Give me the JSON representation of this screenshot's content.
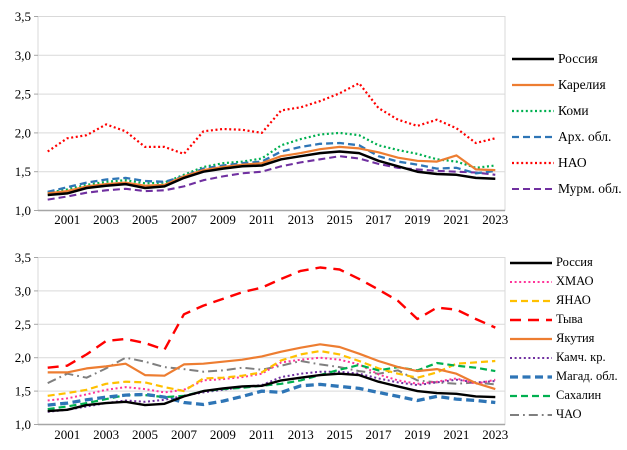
{
  "figure_background": "#FFFFFF",
  "axis_colors": {
    "gridline": "#D9D9D9",
    "axis_line": "#A6A6A6",
    "tick_text": "#000000"
  },
  "chart_data": [
    {
      "type": "line",
      "title": "",
      "xlabel": "",
      "ylabel": "",
      "ylim": [
        1.0,
        3.5
      ],
      "y_tick_step": 0.5,
      "grid": true,
      "legend_position": "right",
      "y_tick_labels": [
        "1,0",
        "1,5",
        "2,0",
        "2,5",
        "3,0",
        "3,5"
      ],
      "x_tick_labels": [
        "2001",
        "2003",
        "2005",
        "2007",
        "2009",
        "2011",
        "2013",
        "2015",
        "2017",
        "2019",
        "2021",
        "2023"
      ],
      "years": [
        2000,
        2001,
        2002,
        2003,
        2004,
        2005,
        2006,
        2007,
        2008,
        2009,
        2010,
        2011,
        2012,
        2013,
        2014,
        2015,
        2016,
        2017,
        2018,
        2019,
        2020,
        2021,
        2022,
        2023
      ],
      "series": [
        {
          "name": "Мурм. обл.",
          "color": "#7030A0",
          "style": "dashed",
          "width": 2.1,
          "values": [
            1.14,
            1.18,
            1.23,
            1.26,
            1.28,
            1.25,
            1.26,
            1.31,
            1.39,
            1.44,
            1.48,
            1.5,
            1.57,
            1.62,
            1.66,
            1.7,
            1.67,
            1.6,
            1.55,
            1.53,
            1.51,
            1.5,
            1.49,
            1.46
          ]
        },
        {
          "name": "Коми",
          "color": "#00B050",
          "style": "dotted",
          "width": 2.2,
          "values": [
            1.23,
            1.27,
            1.33,
            1.37,
            1.39,
            1.35,
            1.36,
            1.46,
            1.56,
            1.61,
            1.63,
            1.67,
            1.84,
            1.92,
            1.98,
            2.0,
            1.97,
            1.84,
            1.78,
            1.73,
            1.66,
            1.63,
            1.55,
            1.58
          ]
        },
        {
          "name": "Арх. обл.",
          "color": "#2E75B6",
          "style": "dashed",
          "width": 2.3,
          "values": [
            1.24,
            1.3,
            1.36,
            1.4,
            1.42,
            1.38,
            1.37,
            1.44,
            1.54,
            1.58,
            1.61,
            1.63,
            1.76,
            1.82,
            1.86,
            1.87,
            1.84,
            1.7,
            1.63,
            1.59,
            1.54,
            1.55,
            1.48,
            1.51
          ]
        },
        {
          "name": "НАО",
          "color": "#FF0000",
          "style": "dotted",
          "width": 2.2,
          "values": [
            1.76,
            1.93,
            1.97,
            2.11,
            2.02,
            1.82,
            1.82,
            1.73,
            2.02,
            2.05,
            2.04,
            2.0,
            2.29,
            2.33,
            2.41,
            2.51,
            2.64,
            2.32,
            2.17,
            2.09,
            2.17,
            2.06,
            1.87,
            1.93
          ]
        },
        {
          "name": "Карелия",
          "color": "#ED7D31",
          "style": "solid",
          "width": 2.2,
          "values": [
            1.22,
            1.25,
            1.31,
            1.34,
            1.36,
            1.32,
            1.33,
            1.44,
            1.52,
            1.56,
            1.59,
            1.61,
            1.7,
            1.74,
            1.79,
            1.82,
            1.8,
            1.75,
            1.68,
            1.64,
            1.63,
            1.71,
            1.53,
            1.52
          ]
        },
        {
          "name": "Россия",
          "color": "#000000",
          "style": "solid",
          "width": 2.5,
          "values": [
            1.2,
            1.22,
            1.29,
            1.32,
            1.34,
            1.29,
            1.31,
            1.42,
            1.5,
            1.54,
            1.57,
            1.58,
            1.66,
            1.7,
            1.74,
            1.76,
            1.74,
            1.64,
            1.57,
            1.5,
            1.47,
            1.46,
            1.42,
            1.41
          ]
        }
      ],
      "legend_order": [
        "Россия",
        "Карелия",
        "Коми",
        "Арх. обл.",
        "НАО",
        "Мурм. обл."
      ]
    },
    {
      "type": "line",
      "title": "",
      "xlabel": "",
      "ylabel": "",
      "ylim": [
        1.0,
        3.5
      ],
      "y_tick_step": 0.5,
      "grid": true,
      "legend_position": "right",
      "y_tick_labels": [
        "1,0",
        "1,5",
        "2,0",
        "2,5",
        "3,0",
        "3,5"
      ],
      "x_tick_labels": [
        "2001",
        "2003",
        "2005",
        "2007",
        "2009",
        "2011",
        "2013",
        "2015",
        "2017",
        "2019",
        "2021",
        "2023"
      ],
      "years": [
        2000,
        2001,
        2002,
        2003,
        2004,
        2005,
        2006,
        2007,
        2008,
        2009,
        2010,
        2011,
        2012,
        2013,
        2014,
        2015,
        2016,
        2017,
        2018,
        2019,
        2020,
        2021,
        2022,
        2023
      ],
      "series": [
        {
          "name": "ЧАО",
          "color": "#7F7F7F",
          "style": "dashdot",
          "width": 2.0,
          "values": [
            1.62,
            1.76,
            1.7,
            1.84,
            2.0,
            1.94,
            1.86,
            1.83,
            1.79,
            1.81,
            1.85,
            1.82,
            1.88,
            1.95,
            1.9,
            1.86,
            1.8,
            1.76,
            1.81,
            1.66,
            1.63,
            1.61,
            1.63,
            1.6
          ]
        },
        {
          "name": "Камч. кр.",
          "color": "#7030A0",
          "style": "dotted",
          "width": 2.0,
          "values": [
            1.19,
            1.22,
            1.27,
            1.32,
            1.36,
            1.34,
            1.37,
            1.43,
            1.48,
            1.52,
            1.56,
            1.59,
            1.71,
            1.76,
            1.79,
            1.79,
            1.76,
            1.69,
            1.63,
            1.59,
            1.63,
            1.67,
            1.63,
            1.65
          ]
        },
        {
          "name": "ХМАО",
          "color": "#FF3399",
          "style": "dotted",
          "width": 2.0,
          "values": [
            1.36,
            1.39,
            1.45,
            1.52,
            1.56,
            1.53,
            1.48,
            1.52,
            1.66,
            1.68,
            1.71,
            1.76,
            1.93,
            1.97,
            2.0,
            1.97,
            1.9,
            1.75,
            1.66,
            1.61,
            1.64,
            1.69,
            1.61,
            1.67
          ]
        },
        {
          "name": "ЯНАО",
          "color": "#FFC000",
          "style": "dashed",
          "width": 2.2,
          "values": [
            1.43,
            1.47,
            1.52,
            1.61,
            1.64,
            1.63,
            1.56,
            1.5,
            1.69,
            1.7,
            1.73,
            1.78,
            1.96,
            2.05,
            2.1,
            2.05,
            1.95,
            1.84,
            1.76,
            1.7,
            1.78,
            1.91,
            1.93,
            1.95
          ]
        },
        {
          "name": "Сахалин",
          "color": "#00B050",
          "style": "dashed",
          "width": 2.2,
          "values": [
            1.23,
            1.27,
            1.32,
            1.38,
            1.44,
            1.44,
            1.41,
            1.43,
            1.5,
            1.53,
            1.55,
            1.58,
            1.61,
            1.66,
            1.74,
            1.82,
            1.89,
            1.81,
            1.86,
            1.81,
            1.92,
            1.88,
            1.85,
            1.8
          ]
        },
        {
          "name": "Тыва",
          "color": "#FF0000",
          "style": "longdash",
          "width": 2.4,
          "values": [
            1.85,
            1.88,
            2.05,
            2.25,
            2.28,
            2.22,
            2.12,
            2.65,
            2.78,
            2.88,
            2.98,
            3.05,
            3.18,
            3.3,
            3.35,
            3.32,
            3.18,
            3.02,
            2.85,
            2.58,
            2.75,
            2.72,
            2.58,
            2.45
          ]
        },
        {
          "name": "Якутия",
          "color": "#ED7D31",
          "style": "solid",
          "width": 2.2,
          "values": [
            1.78,
            1.78,
            1.84,
            1.87,
            1.91,
            1.74,
            1.73,
            1.9,
            1.91,
            1.94,
            1.97,
            2.02,
            2.09,
            2.15,
            2.2,
            2.16,
            2.06,
            1.95,
            1.86,
            1.8,
            1.83,
            1.76,
            1.62,
            1.53
          ]
        },
        {
          "name": "Магад. обл.",
          "color": "#2E75B6",
          "style": "thickdash",
          "width": 3.3,
          "values": [
            1.29,
            1.32,
            1.37,
            1.41,
            1.44,
            1.45,
            1.41,
            1.33,
            1.3,
            1.35,
            1.42,
            1.5,
            1.48,
            1.58,
            1.6,
            1.57,
            1.54,
            1.48,
            1.42,
            1.36,
            1.42,
            1.38,
            1.36,
            1.33
          ]
        },
        {
          "name": "Россия",
          "color": "#000000",
          "style": "solid",
          "width": 2.4,
          "values": [
            1.2,
            1.22,
            1.29,
            1.32,
            1.34,
            1.29,
            1.31,
            1.42,
            1.5,
            1.54,
            1.57,
            1.58,
            1.66,
            1.7,
            1.74,
            1.76,
            1.74,
            1.64,
            1.57,
            1.5,
            1.47,
            1.46,
            1.42,
            1.41
          ]
        }
      ],
      "legend_order": [
        "Россия",
        "ХМАО",
        "ЯНАО",
        "Тыва",
        "Якутия",
        "Камч. кр.",
        "Магад. обл.",
        "Сахалин",
        "ЧАО"
      ]
    }
  ]
}
